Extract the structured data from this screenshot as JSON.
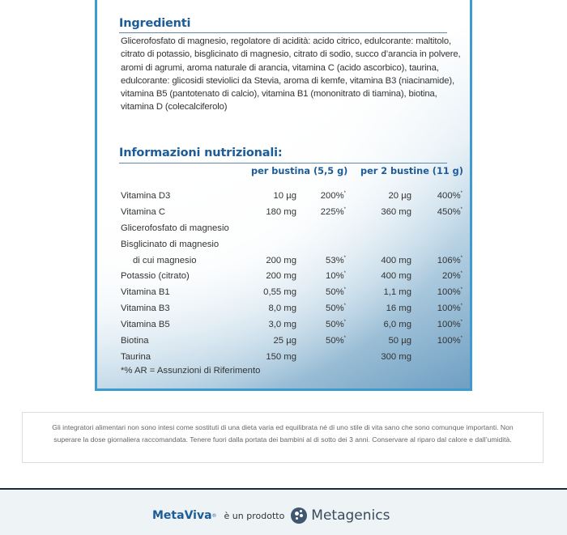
{
  "ingredients": {
    "title": "Ingredienti",
    "text": "Glicerofosfato di magnesio, regolatore di acidità: acido citrico, edulcorante: maltitolo, citrato di potassio, bisglicinato di magnesio, citrato di sodio, succo d’arancia in polvere, aromi di agrumi, aroma naturale di arancia, vitamina C (acido ascorbico), taurina, edulcorante: glicosidi steviolici da Stevia, aroma di kemfe, vitamina B3 (niacinamide), vitamina B5 (pantotenato di calcio), vitamina B1 (mononitrato di tiamina), biotina, vitamina D (colecalciferolo)"
  },
  "nutrition": {
    "title": "Informazioni nutrizionali:",
    "col1": "per bustina (5,5 g)",
    "col2": "per 2 bustine (11 g)",
    "rows": [
      {
        "name": "Vitamina D3",
        "a1": "10 µg",
        "p1": "200%",
        "a2": "20 µg",
        "p2": "400%"
      },
      {
        "name": "Vitamina C",
        "a1": "180 mg",
        "p1": "225%",
        "a2": "360 mg",
        "p2": "450%"
      },
      {
        "name": "Glicerofosfato di magnesio",
        "a1": "",
        "p1": "",
        "a2": "",
        "p2": ""
      },
      {
        "name": "Bisglicinato di magnesio",
        "a1": "",
        "p1": "",
        "a2": "",
        "p2": ""
      },
      {
        "name": "   di cui magnesio",
        "a1": "200 mg",
        "p1": "53%",
        "a2": "400 mg",
        "p2": "106%"
      },
      {
        "name": "Potassio (citrato)",
        "a1": "200 mg",
        "p1": "10%",
        "a2": "400 mg",
        "p2": "20%"
      },
      {
        "name": "Vitamina B1",
        "a1": "0,55 mg",
        "p1": "50%",
        "a2": "1,1 mg",
        "p2": "100%"
      },
      {
        "name": "Vitamina B3",
        "a1": "8,0 mg",
        "p1": "50%",
        "a2": "16 mg",
        "p2": "100%"
      },
      {
        "name": "Vitamina B5",
        "a1": "3,0 mg",
        "p1": "50%",
        "a2": "6,0 mg",
        "p2": "100%"
      },
      {
        "name": "Biotina",
        "a1": "25 µg",
        "p1": "50%",
        "a2": "50 µg",
        "p2": "100%"
      },
      {
        "name": "Taurina",
        "a1": "150 mg",
        "p1": "",
        "a2": "300 mg",
        "p2": ""
      }
    ],
    "footnote": "*% AR = Assunzioni di Riferimento"
  },
  "disclaimer": "Gli integratori alimentari non sono intesi come sostituti di una dieta varia ed equilibrata né di uno stile di vita sano che sono comunque importanti. Non superare la dose giornaliera raccomandata. Tenere fuori dalla portata dei bambini al di sotto dei 3 anni. Conservare al riparo dal calore e dall’umidità.",
  "footer": {
    "brand": "MetaViva",
    "reg": "®",
    "product_text": "è un prodotto",
    "company": "Metagenics",
    "company_mark": "·",
    "brand_color": "#1d5c98"
  }
}
